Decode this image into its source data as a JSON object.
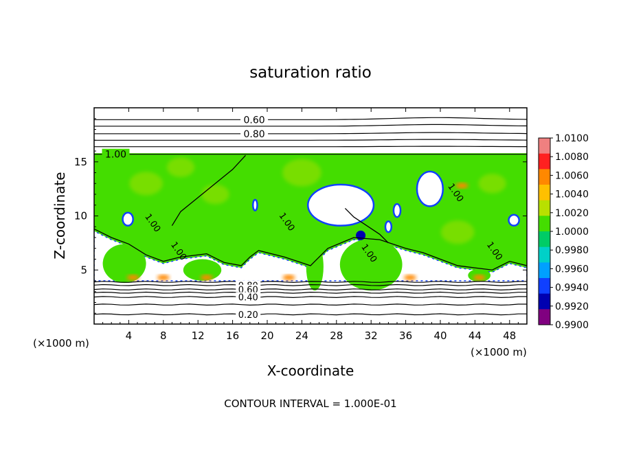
{
  "chart_data": {
    "type": "heatmap",
    "title": "saturation ratio",
    "xlabel": "X-coordinate",
    "ylabel": "Z-coordinate",
    "x_unit_label": "(×1000 m)",
    "y_unit_label": "(×1000 m)",
    "xlim": [
      0,
      50
    ],
    "ylim": [
      0,
      20
    ],
    "xticks": [
      4,
      8,
      12,
      16,
      20,
      24,
      28,
      32,
      36,
      40,
      44,
      48
    ],
    "yticks": [
      5,
      10,
      15
    ],
    "footnote": "CONTOUR INTERVAL = 1.000E-01",
    "colorbar": {
      "levels": [
        "1.0100",
        "1.0080",
        "1.0060",
        "1.0040",
        "1.0020",
        "1.0000",
        "0.9980",
        "0.9960",
        "0.9940",
        "0.9920",
        "0.9900"
      ],
      "colors": [
        "#f08080",
        "#ff2020",
        "#ff8800",
        "#ffc000",
        "#b8e000",
        "#44dd00",
        "#00cc66",
        "#00d0c8",
        "#00a0ff",
        "#1040ff",
        "#0000b0",
        "#800080"
      ]
    },
    "contours": {
      "stratosphere": [
        {
          "label": "0.60",
          "z": 18.9,
          "amp": 0.25
        },
        {
          "label": "",
          "z": 18.3,
          "amp": 0.2
        },
        {
          "label": "0.80",
          "z": 17.6,
          "amp": 0.15
        },
        {
          "label": "",
          "z": 17.0,
          "amp": 0.1
        },
        {
          "label": "",
          "z": 16.4,
          "amp": 0.05
        },
        {
          "label": "1.00",
          "z": 15.7,
          "amp": 0.0
        }
      ],
      "lower": [
        {
          "label": "",
          "z": 3.9
        },
        {
          "label": "0.80",
          "z": 3.6
        },
        {
          "label": "0.60",
          "z": 3.2
        },
        {
          "label": "",
          "z": 2.9
        },
        {
          "label": "0.40",
          "z": 2.5
        },
        {
          "label": "",
          "z": 1.8
        },
        {
          "label": "0.20",
          "z": 0.9
        }
      ]
    },
    "supersaturated_layer": {
      "z_bottom": 4.0,
      "z_top": 15.8,
      "value": 1.001
    },
    "subsaturated_patches": [
      {
        "x": [
          0,
          2,
          4,
          6,
          8,
          10,
          13,
          15,
          17,
          18,
          19,
          22,
          25,
          27,
          30,
          33,
          36,
          38,
          40,
          42,
          44,
          46,
          48,
          50
        ],
        "z_low": 4.0,
        "z_high": [
          8.6,
          7.8,
          7.2,
          6.2,
          5.6,
          6.0,
          6.3,
          5.5,
          5.2,
          6.0,
          6.6,
          6.0,
          5.2,
          6.8,
          7.8,
          7.6,
          6.8,
          6.4,
          5.8,
          5.2,
          5.0,
          4.8,
          5.6,
          5.2
        ]
      }
    ],
    "dry_cells": [
      {
        "x": 28.5,
        "z": 11.0,
        "rx": 3.8,
        "rz": 1.9
      },
      {
        "x": 38.8,
        "z": 12.5,
        "rx": 1.5,
        "rz": 1.6
      },
      {
        "x": 18.6,
        "z": 11.0,
        "rx": 0.25,
        "rz": 0.5
      },
      {
        "x": 35.0,
        "z": 10.5,
        "rx": 0.4,
        "rz": 0.6
      },
      {
        "x": 34.0,
        "z": 9.0,
        "rx": 0.35,
        "rz": 0.5
      },
      {
        "x": 3.9,
        "z": 9.7,
        "rx": 0.6,
        "rz": 0.6
      },
      {
        "x": 48.5,
        "z": 9.6,
        "rx": 0.6,
        "rz": 0.5
      }
    ],
    "hot_spots": [
      {
        "x": 4.5,
        "z": 4.3
      },
      {
        "x": 8.0,
        "z": 4.3
      },
      {
        "x": 13.0,
        "z": 4.3
      },
      {
        "x": 22.5,
        "z": 4.3
      },
      {
        "x": 36.5,
        "z": 4.3
      },
      {
        "x": 44.5,
        "z": 4.3
      },
      {
        "x": 42.5,
        "z": 12.8
      }
    ],
    "cloud_contours": [
      {
        "label": "1.00",
        "x": 6.5,
        "z": 9.2
      },
      {
        "label": "1.00",
        "x": 9.5,
        "z": 6.6
      },
      {
        "label": "1.00",
        "x": 22.0,
        "z": 9.3
      },
      {
        "label": "1.00",
        "x": 31.5,
        "z": 6.4
      },
      {
        "label": "1.00",
        "x": 41.5,
        "z": 12.0
      },
      {
        "label": "1.00",
        "x": 46.0,
        "z": 6.6
      }
    ]
  }
}
